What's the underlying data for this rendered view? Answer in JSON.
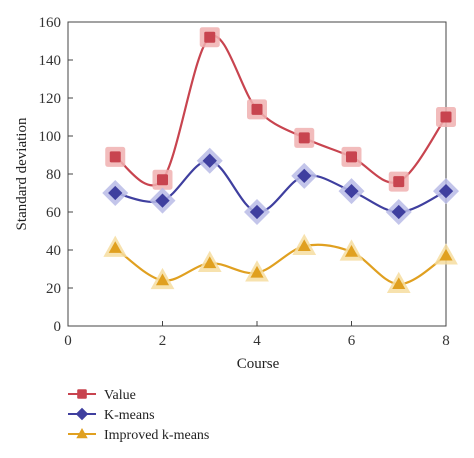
{
  "chart_data": {
    "type": "line",
    "title": "",
    "xlabel": "Course",
    "ylabel": "Standard deviation",
    "xlim": [
      0,
      8
    ],
    "ylim": [
      0,
      160
    ],
    "x_ticks": [
      0,
      2,
      4,
      6,
      8
    ],
    "y_ticks": [
      0,
      20,
      40,
      60,
      80,
      100,
      120,
      140,
      160
    ],
    "x": [
      1,
      2,
      3,
      4,
      5,
      6,
      7,
      8
    ],
    "grid": false,
    "legend_position": "bottom-left",
    "series": [
      {
        "name": "Value",
        "values": [
          89,
          77,
          152,
          114,
          99,
          89,
          76,
          110
        ],
        "color": "#c8444f",
        "halo": "#f0b0b0",
        "marker": "square"
      },
      {
        "name": "K-means",
        "values": [
          70,
          66,
          87,
          60,
          79,
          71,
          60,
          71
        ],
        "color": "#3f3f9f",
        "halo": "#b8bbe6",
        "marker": "diamond"
      },
      {
        "name": "Improved k-means",
        "values": [
          41,
          24,
          33,
          28,
          42,
          39,
          22,
          37
        ],
        "color": "#e0a020",
        "halo": "#f6dda0",
        "marker": "triangle"
      }
    ]
  }
}
